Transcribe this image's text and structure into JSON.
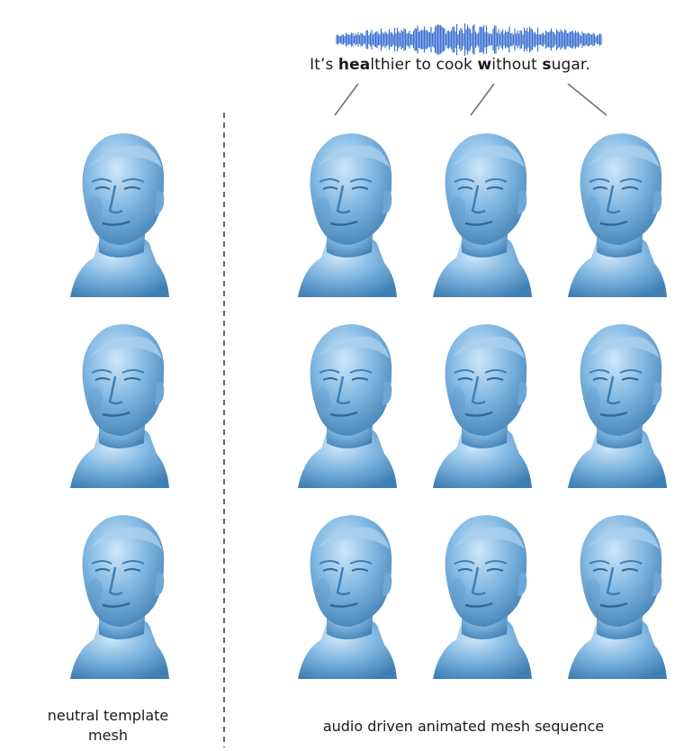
{
  "sentence": {
    "parts": [
      {
        "text": "It’s ",
        "bold": false
      },
      {
        "text": "hea",
        "bold": true
      },
      {
        "text": "lthier to cook ",
        "bold": false
      },
      {
        "text": "w",
        "bold": true
      },
      {
        "text": "ithout ",
        "bold": false
      },
      {
        "text": "s",
        "bold": true
      },
      {
        "text": "ugar.",
        "bold": false
      }
    ]
  },
  "captions": {
    "left_line1": "neutral template",
    "left_line2": "mesh",
    "right": "audio driven animated mesh sequence"
  },
  "colors": {
    "mesh": "#7fb5e0",
    "mesh_shadow": "#3f7fb3",
    "mesh_highlight": "#c9e3f7",
    "waveform": "#3a6fd0",
    "divider": "#666666",
    "pointer": "#707070"
  },
  "grid": {
    "rows": 3,
    "template_column_count": 1,
    "sequence_column_count": 3
  }
}
